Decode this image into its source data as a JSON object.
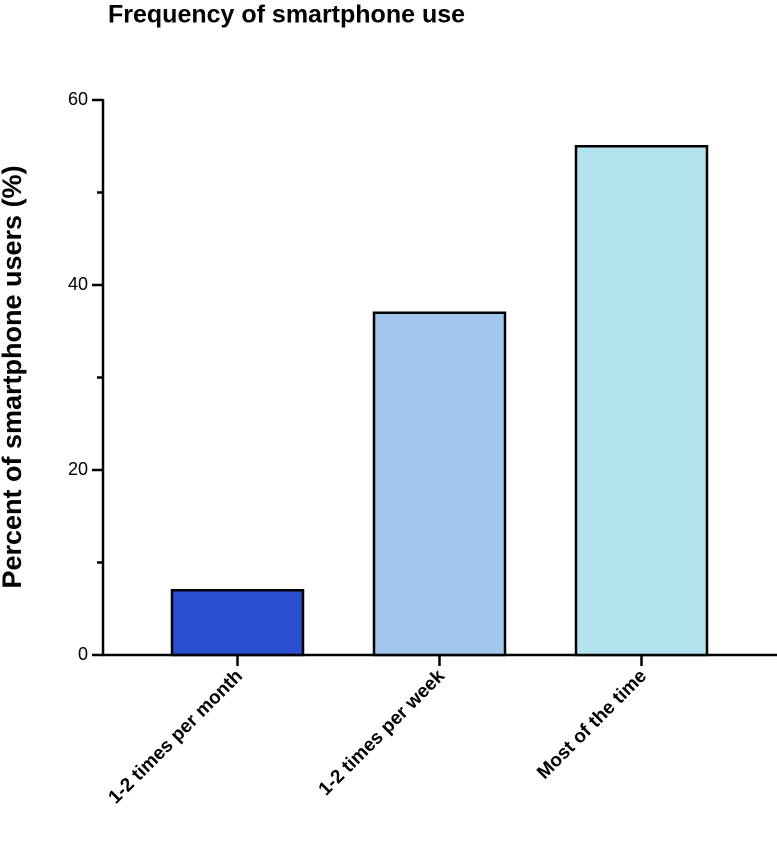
{
  "chart_data": {
    "type": "bar",
    "title": "Frequency of smartphone use",
    "y_label": "Percent of smartphone users (%)",
    "categories": [
      "1-2 times per month",
      "1-2 times per week",
      "Most of the time"
    ],
    "values": [
      7,
      37,
      55
    ],
    "colors": [
      "#2a50d0",
      "#a3c6ef",
      "#b4e3f0"
    ],
    "ylim": [
      0,
      60
    ],
    "yticks": [
      0,
      20,
      40,
      60
    ],
    "yminorticks": [
      10,
      30,
      50
    ],
    "grid": false
  }
}
